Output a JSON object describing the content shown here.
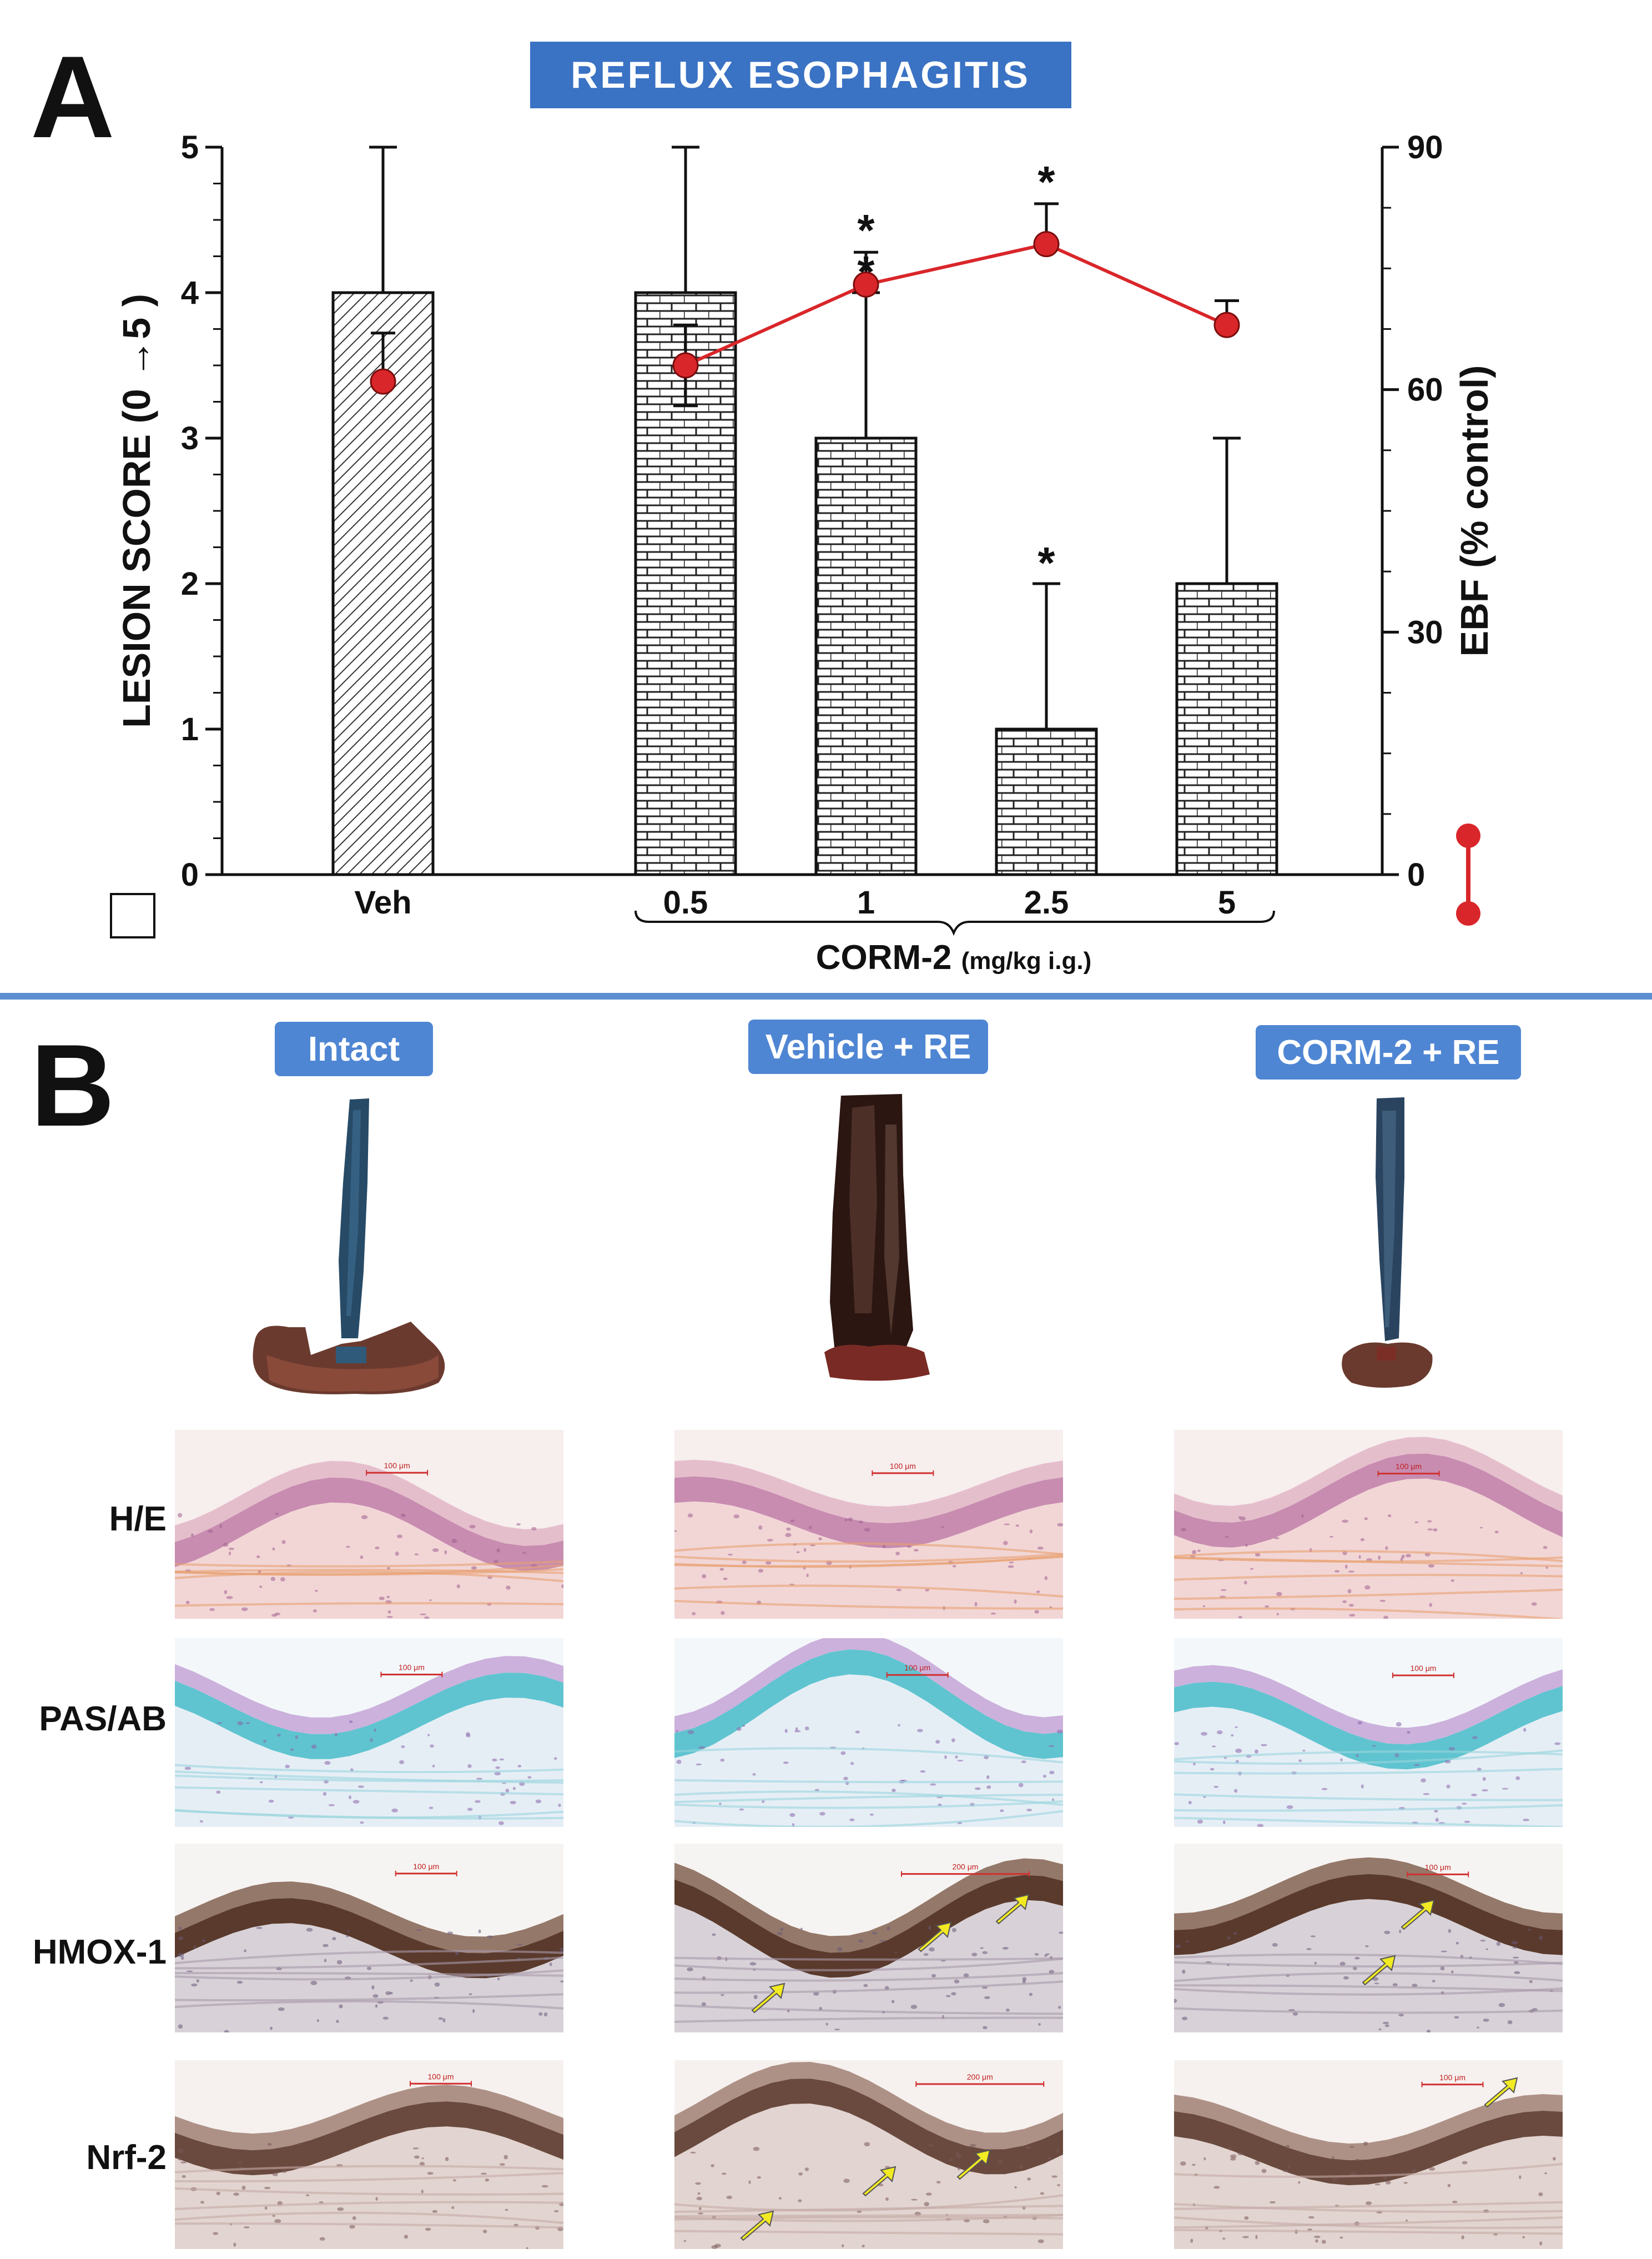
{
  "panel_a_letter": "A",
  "panel_b_letter": "B",
  "chart_data": {
    "type": "bar",
    "title": "REFLUX ESOPHAGITIS",
    "title_bg": "#3a72c4",
    "categories": [
      "Veh",
      "0.5",
      "1",
      "2.5",
      "5"
    ],
    "group_label": "CORM-2",
    "group_unit": "(mg/kg i.g.)",
    "ylabel": "LESION SCORE (0 →5 )",
    "y2label": "EBF (% control)",
    "ylim": [
      0,
      5
    ],
    "y2lim": [
      0,
      90
    ],
    "yticks": [
      "0",
      "1",
      "2",
      "3",
      "4",
      "5"
    ],
    "y2ticks": [
      "0",
      "30",
      "60",
      "90"
    ],
    "series": [
      {
        "kind": "bar",
        "axis": "left",
        "values": [
          4,
          4,
          3,
          1,
          2
        ],
        "errors": [
          1,
          1,
          1,
          1,
          1
        ],
        "significant": [
          false,
          false,
          true,
          true,
          false
        ],
        "patterns": [
          "diagonal-hatch",
          "brick",
          "brick",
          "brick",
          "brick"
        ]
      },
      {
        "kind": "line",
        "axis": "right",
        "color": "#d9262a",
        "values": [
          61,
          63,
          73,
          78,
          68
        ],
        "errors": [
          6,
          5,
          4,
          5,
          3
        ],
        "connected": [
          false,
          true,
          true,
          true,
          true
        ],
        "significant": [
          false,
          false,
          true,
          true,
          false
        ]
      }
    ],
    "significance_marker": "*"
  },
  "panel_b": {
    "columns": [
      {
        "label": "Intact"
      },
      {
        "label": "Vehicle + RE"
      },
      {
        "label": "CORM-2 + RE"
      }
    ],
    "rows": [
      {
        "label": "H/E",
        "scales": [
          "100 μm",
          "100 μm",
          "100 μm"
        ]
      },
      {
        "label": "PAS/AB",
        "scales": [
          "100 μm",
          "100 μm",
          "100 μm"
        ]
      },
      {
        "label": "HMOX-1",
        "scales": [
          "100 μm",
          "200 μm",
          "100 μm"
        ]
      },
      {
        "label": "Nrf-2",
        "scales": [
          "100 μm",
          "200 μm",
          "100 μm"
        ]
      }
    ],
    "label_color": "#4f86d3",
    "arrow_color": "#f2ea22"
  }
}
